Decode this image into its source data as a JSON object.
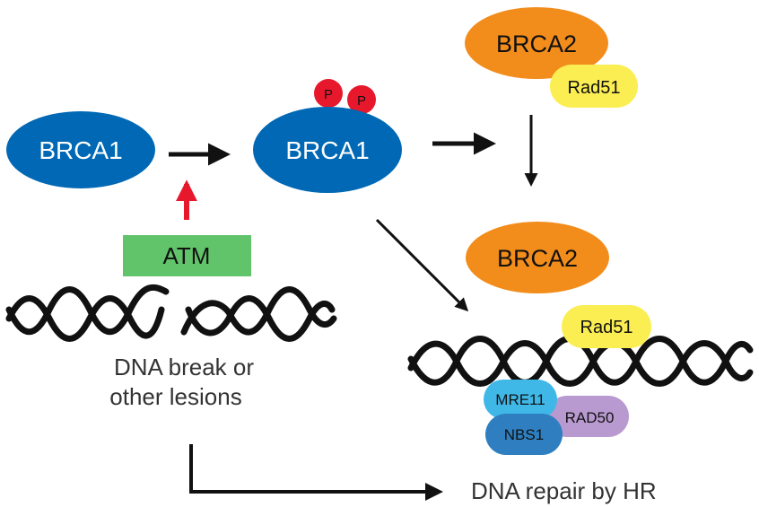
{
  "nodes": {
    "brca1_left": "BRCA1",
    "brca1_phos": "BRCA1",
    "phospho_1": "P",
    "phospho_2": "P",
    "atm": "ATM",
    "brca2_top": "BRCA2",
    "rad51_top": "Rad51",
    "brca2_bottom": "BRCA2",
    "rad51_bottom": "Rad51",
    "mre11": "MRE11",
    "rad50": "RAD50",
    "nbs1": "NBS1"
  },
  "captions": {
    "lesion_line1": "DNA break or",
    "lesion_line2": "other lesions",
    "repair": "DNA repair by HR"
  },
  "colors": {
    "brca1": "#0068b4",
    "brca2": "#f28c1b",
    "rad51": "#fbee52",
    "atm": "#62c46a",
    "phospho": "#e8182c",
    "mre11": "#3fb8e8",
    "nbs1": "#2f7fc0",
    "rad50": "#b99ad0",
    "dna": "#111111",
    "red_arrow": "#e8182c",
    "arrow": "#111111"
  }
}
